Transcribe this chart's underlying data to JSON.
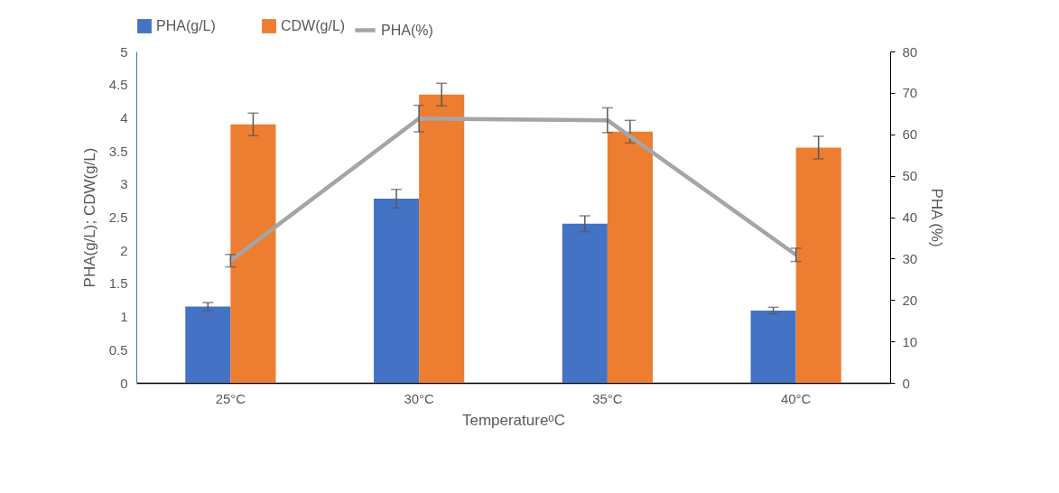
{
  "chart_data": {
    "type": "bar",
    "categories": [
      "25°C",
      "30°C",
      "35°C",
      "40°C"
    ],
    "xlabel": "TemperatureᵒC",
    "ylabel": "PHA(g/L); CDW(g/L)",
    "y2label": "PHA (%)",
    "ylim": [
      0,
      5
    ],
    "yticks": [
      0,
      0.5,
      1,
      1.5,
      2,
      2.5,
      3,
      3.5,
      4,
      4.5,
      5
    ],
    "y2lim": [
      0,
      80
    ],
    "y2ticks": [
      0,
      10,
      20,
      30,
      40,
      50,
      60,
      70,
      80
    ],
    "legend": "top",
    "series": [
      {
        "name": "PHA(g/L)",
        "color": "#4472c4",
        "values": [
          1.15,
          2.78,
          2.4,
          1.09
        ],
        "errors": [
          0.06,
          0.14,
          0.12,
          0.05
        ]
      },
      {
        "name": "CDW(g/L)",
        "color": "#ed7d31",
        "values": [
          3.9,
          4.35,
          3.79,
          3.55
        ],
        "errors": [
          0.17,
          0.17,
          0.17,
          0.17
        ]
      },
      {
        "name": "PHA(%)",
        "type": "line",
        "axis": "y2",
        "color": "#a5a5a5",
        "values": [
          29.5,
          63.8,
          63.4,
          30.9
        ],
        "errors": [
          1.5,
          3.2,
          3,
          1.6
        ]
      }
    ]
  }
}
